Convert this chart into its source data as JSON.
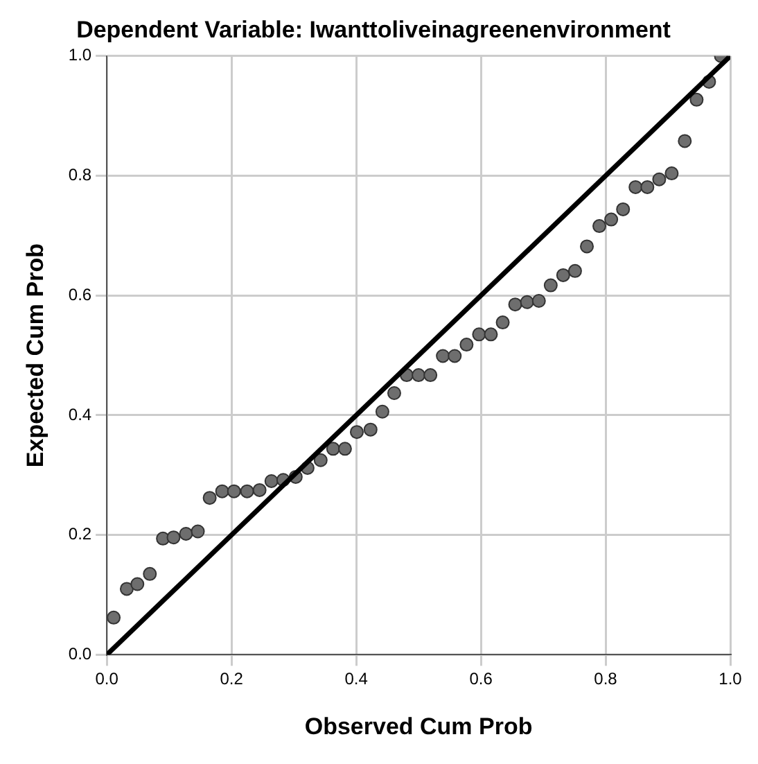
{
  "chart_data": {
    "type": "scatter",
    "title": "Dependent Variable: Iwanttoliveinagreenenvironment",
    "xlabel": "Observed Cum Prob",
    "ylabel": "Expected Cum Prob",
    "xlim": [
      0,
      1
    ],
    "ylim": [
      0,
      1
    ],
    "xticks": [
      {
        "value": 0,
        "label": "0.0"
      },
      {
        "value": 0.2,
        "label": "0.2"
      },
      {
        "value": 0.4,
        "label": "0.4"
      },
      {
        "value": 0.6,
        "label": "0.6"
      },
      {
        "value": 0.8,
        "label": "0.8"
      },
      {
        "value": 1,
        "label": "1.0"
      }
    ],
    "yticks": [
      {
        "value": 0,
        "label": "0.0"
      },
      {
        "value": 0.2,
        "label": "0.2"
      },
      {
        "value": 0.4,
        "label": "0.4"
      },
      {
        "value": 0.6,
        "label": "0.6"
      },
      {
        "value": 0.8,
        "label": "0.8"
      },
      {
        "value": 1,
        "label": "1.0"
      }
    ],
    "grid": true,
    "marker": "circle",
    "series": [
      {
        "color": "#6e6e6e",
        "x": [
          0.011,
          0.032,
          0.049,
          0.069,
          0.09,
          0.107,
          0.127,
          0.146,
          0.165,
          0.185,
          0.204,
          0.225,
          0.245,
          0.264,
          0.283,
          0.303,
          0.322,
          0.343,
          0.363,
          0.382,
          0.401,
          0.423,
          0.442,
          0.461,
          0.481,
          0.5,
          0.519,
          0.539,
          0.558,
          0.577,
          0.597,
          0.616,
          0.635,
          0.655,
          0.674,
          0.693,
          0.712,
          0.732,
          0.751,
          0.77,
          0.79,
          0.809,
          0.828,
          0.848,
          0.867,
          0.886,
          0.906,
          0.927,
          0.946,
          0.966,
          0.985
        ],
        "values": [
          0.062,
          0.11,
          0.118,
          0.135,
          0.194,
          0.196,
          0.202,
          0.206,
          0.262,
          0.273,
          0.273,
          0.273,
          0.275,
          0.29,
          0.292,
          0.297,
          0.312,
          0.325,
          0.344,
          0.344,
          0.372,
          0.376,
          0.406,
          0.437,
          0.467,
          0.467,
          0.467,
          0.499,
          0.499,
          0.518,
          0.535,
          0.535,
          0.555,
          0.585,
          0.589,
          0.591,
          0.617,
          0.634,
          0.641,
          0.682,
          0.716,
          0.727,
          0.744,
          0.781,
          0.781,
          0.794,
          0.804,
          0.858,
          0.927,
          0.957,
          1.0
        ]
      },
      {
        "type": "line",
        "color": "#000000",
        "x": [
          0,
          1
        ],
        "values": [
          0,
          1
        ],
        "marker": "none",
        "line_style": "solid"
      }
    ]
  }
}
